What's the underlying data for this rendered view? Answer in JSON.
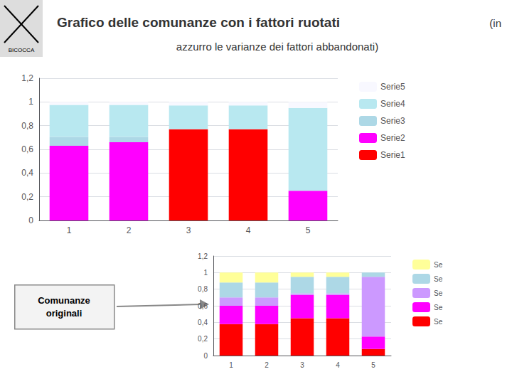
{
  "chart_data": [
    {
      "type": "bar",
      "title": "Grafico delle comunanze con i fattori ruotati",
      "subtitle": "azzurro le varianze dei fattori abbandonati)",
      "annotations": [
        "(in",
        "BICOCCA",
        "Comunanze\noriginali"
      ],
      "stacked": true,
      "categories": [
        "1",
        "2",
        "3",
        "4",
        "5"
      ],
      "series": [
        {
          "name": "Serie1",
          "color": "#ff0000",
          "values": [
            0.0,
            0.0,
            0.77,
            0.77,
            0.0
          ]
        },
        {
          "name": "Serie2",
          "color": "#ff00ff",
          "values": [
            0.63,
            0.66,
            0.0,
            0.0,
            0.25
          ]
        },
        {
          "name": "Serie3",
          "color": "#add8e6",
          "values": [
            0.075,
            0.045,
            0.0,
            0.0,
            0.0
          ]
        },
        {
          "name": "Serie4",
          "color": "#b8e8f0",
          "values": [
            0.27,
            0.27,
            0.2,
            0.2,
            0.7
          ]
        },
        {
          "name": "Serie5",
          "color": "#f8f8ff",
          "values": [
            0.025,
            0.025,
            0.03,
            0.03,
            0.05
          ]
        }
      ],
      "ylim": [
        0,
        1.2
      ],
      "yticks": [
        0,
        {
          "value": 0.2,
          "label": "0,2"
        },
        {
          "value": 0.4,
          "label": "0,4"
        },
        {
          "value": 0.6,
          "label": "0,6"
        },
        {
          "value": 0.8,
          "label": "0,8"
        },
        1,
        {
          "value": 1.2,
          "label": "1,2"
        }
      ],
      "grid": true,
      "legend": "right"
    },
    {
      "type": "bar",
      "stacked": true,
      "categories": [
        "1",
        "2",
        "3",
        "4",
        "5"
      ],
      "series": [
        {
          "name": "Se",
          "color": "#ff0000",
          "values": [
            0.38,
            0.38,
            0.45,
            0.45,
            0.08
          ]
        },
        {
          "name": "Se",
          "color": "#ff00ff",
          "values": [
            0.22,
            0.22,
            0.28,
            0.28,
            0.15
          ]
        },
        {
          "name": "Se",
          "color": "#cc99ff",
          "values": [
            0.1,
            0.1,
            0.02,
            0.02,
            0.72
          ]
        },
        {
          "name": "Se",
          "color": "#add8e6",
          "values": [
            0.18,
            0.18,
            0.2,
            0.2,
            0.05
          ]
        },
        {
          "name": "Se",
          "color": "#ffff99",
          "values": [
            0.12,
            0.12,
            0.05,
            0.05,
            0.0
          ]
        }
      ],
      "ylim": [
        0,
        1.2
      ],
      "yticks": [
        0,
        {
          "value": 0.2,
          "label": "0,2"
        },
        {
          "value": 0.4,
          "label": "0,4"
        },
        {
          "value": 0.6,
          "label": "0,6"
        },
        {
          "value": 0.8,
          "label": "0,8"
        },
        1,
        {
          "value": 1.2,
          "label": "1,2"
        }
      ],
      "grid": true,
      "legend": "right"
    }
  ]
}
